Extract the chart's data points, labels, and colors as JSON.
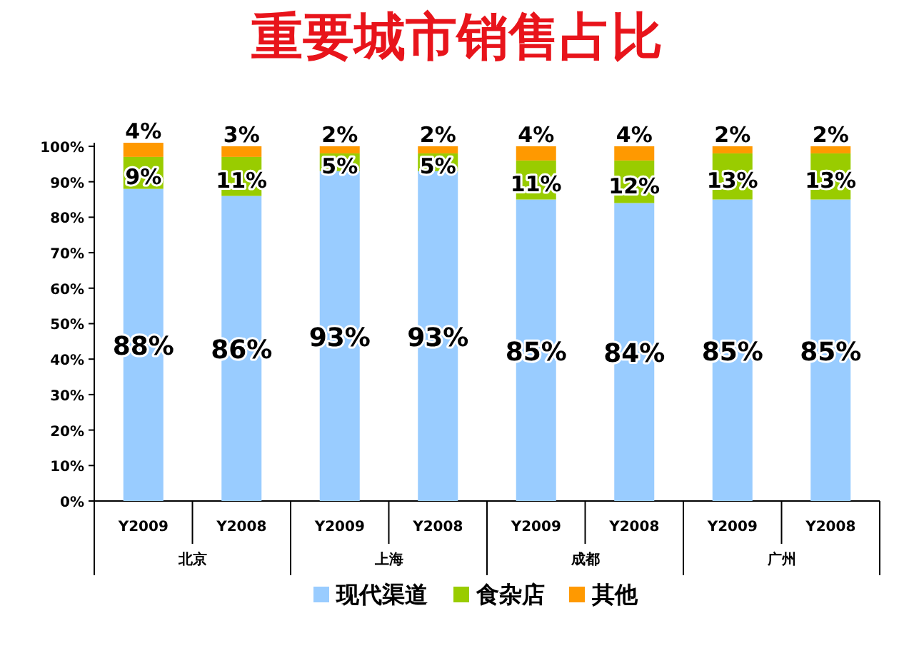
{
  "chart_data": {
    "type": "bar",
    "title": "重要城市销售占比",
    "stacked": true,
    "legend": "bottom",
    "grid": false,
    "categories": [
      "Y2009",
      "Y2008",
      "Y2009",
      "Y2008",
      "Y2009",
      "Y2008",
      "Y2009",
      "Y2008"
    ],
    "annotations": [
      "北京",
      "上海",
      "成都",
      "广州"
    ],
    "series": [
      {
        "name": "现代渠道",
        "color": "#99ccff",
        "values": [
          88,
          86,
          93,
          93,
          85,
          84,
          85,
          85
        ],
        "value_labels": [
          "88%",
          "86%",
          "93%",
          "93%",
          "85%",
          "84%",
          "85%",
          "85%"
        ]
      },
      {
        "name": "食杂店",
        "color": "#99cc00",
        "values": [
          9,
          11,
          5,
          5,
          11,
          12,
          13,
          13
        ],
        "value_labels": [
          "9%",
          "11%",
          "5%",
          "5%",
          "11%",
          "12%",
          "13%",
          "13%"
        ]
      },
      {
        "name": "其他",
        "color": "#ff9900",
        "values": [
          4,
          3,
          2,
          2,
          4,
          4,
          2,
          2
        ],
        "value_labels": [
          "4%",
          "3%",
          "2%",
          "2%",
          "4%",
          "4%",
          "2%",
          "2%"
        ]
      }
    ],
    "ylim": [
      0,
      101
    ],
    "yticks": [
      {
        "value": 0,
        "label": "0%"
      },
      {
        "value": 10,
        "label": "10%"
      },
      {
        "value": 20,
        "label": "20%"
      },
      {
        "value": 30,
        "label": "30%"
      },
      {
        "value": 40,
        "label": "40%"
      },
      {
        "value": 50,
        "label": "50%"
      },
      {
        "value": 60,
        "label": "60%"
      },
      {
        "value": 70,
        "label": "70%"
      },
      {
        "value": 80,
        "label": "80%"
      },
      {
        "value": 90,
        "label": "90%"
      },
      {
        "value": 100,
        "label": "100%"
      }
    ]
  }
}
